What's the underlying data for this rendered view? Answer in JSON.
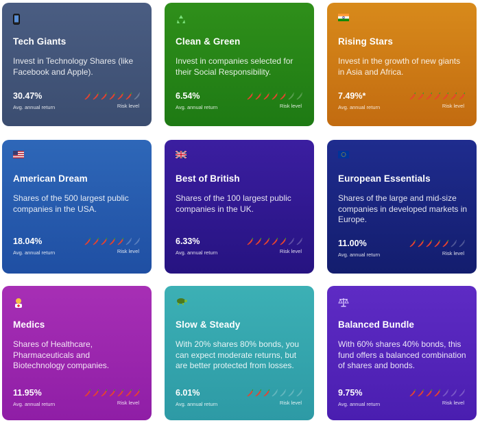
{
  "labels": {
    "avg_return": "Avg. annual return",
    "risk": "Risk level"
  },
  "cards": [
    {
      "icon": "mobile-phone-icon",
      "title": "Tech Giants",
      "desc": "Invest in Technology Shares (like Facebook and Apple).",
      "return": "30.47%",
      "risk": 6,
      "risk_max": 7
    },
    {
      "icon": "recycle-icon",
      "title": "Clean & Green",
      "desc": "Invest in companies selected for their Social Responsibility.",
      "return": "6.54%",
      "risk": 5,
      "risk_max": 7
    },
    {
      "icon": "india-flag-icon",
      "title": "Rising Stars",
      "desc": "Invest in the growth of new giants in Asia and Africa.",
      "return": "7.49%*",
      "risk": 7,
      "risk_max": 7
    },
    {
      "icon": "us-flag-icon",
      "title": "American Dream",
      "desc": "Shares of the 500 largest public companies in the USA.",
      "return": "18.04%",
      "risk": 5,
      "risk_max": 7
    },
    {
      "icon": "uk-flag-icon",
      "title": "Best of British",
      "desc": "Shares of the 100 largest public companies in the UK.",
      "return": "6.33%",
      "risk": 5,
      "risk_max": 7
    },
    {
      "icon": "eu-flag-icon",
      "title": "European Essentials",
      "desc": "Shares of the large and mid-size companies in developed markets in Europe.",
      "return": "11.00%",
      "risk": 5,
      "risk_max": 7
    },
    {
      "icon": "health-worker-icon",
      "title": "Medics",
      "desc": "Shares of Healthcare, Pharmaceuticals and Biotechnology companies.",
      "return": "11.95%",
      "risk": 7,
      "risk_max": 7
    },
    {
      "icon": "turtle-icon",
      "title": "Slow & Steady",
      "desc": "With 20% shares 80% bonds, you can expect moderate returns, but are better protected from losses.",
      "return": "6.01%",
      "risk": 3,
      "risk_max": 7
    },
    {
      "icon": "balance-scale-icon",
      "title": "Balanced Bundle",
      "desc": "With 60% shares 40% bonds, this fund offers a balanced combination of shares and bonds.",
      "return": "9.75%",
      "risk": 4,
      "risk_max": 7
    }
  ],
  "colors": {
    "chili_active": "#e8432e",
    "chili_inactive": "rgba(255,255,255,0.25)"
  }
}
